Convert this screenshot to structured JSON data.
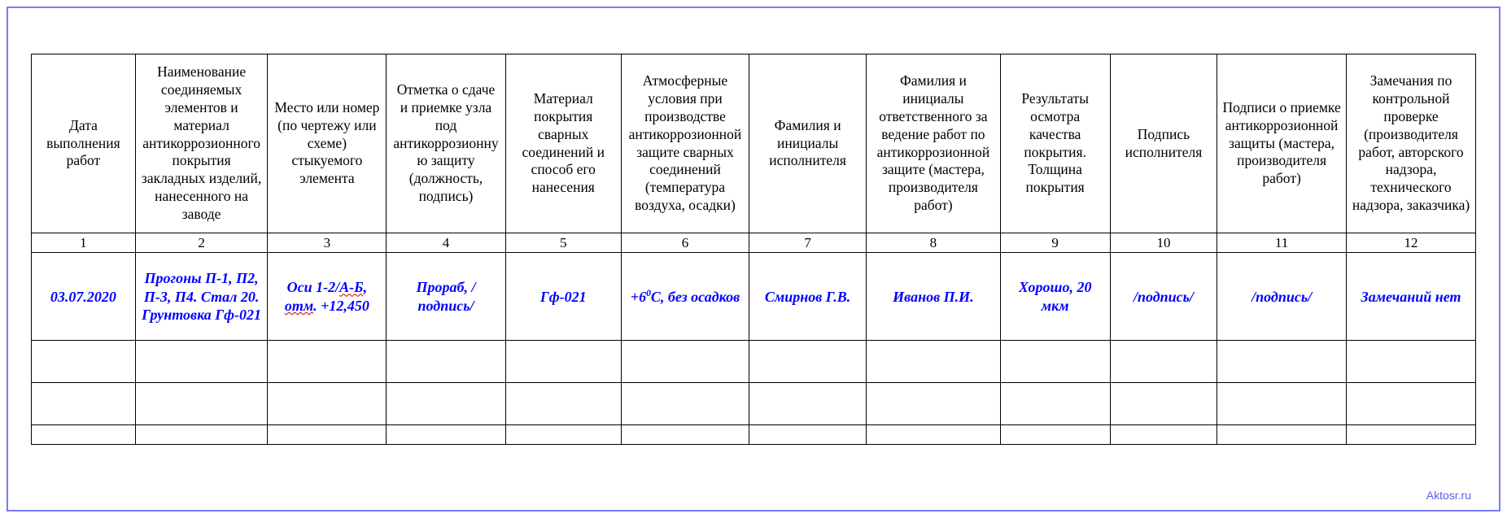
{
  "table": {
    "columns": [
      "Дата выполнения работ",
      "Наименование соединяемых элементов и материал антикоррозионного покрытия закладных изделий, нанесенного на заводе",
      "Место или номер (по чертежу или схеме) стыкуемого элемента",
      "Отметка о сдаче и приемке узла под антикоррозионную защиту (должность, подпись)",
      "Материал покрытия сварных соединений и способ его нанесения",
      "Атмосферные условия при производстве антикоррозионной защите сварных соединений (температура воздуха, осадки)",
      "Фамилия и инициалы исполнителя",
      "Фамилия и инициалы ответственного за ведение работ по антикоррозионной защите (мастера, производителя работ)",
      "Результаты осмотра качества покрытия. Толщина покрытия",
      "Подпись исполнителя",
      "Подписи о приемке антикоррозионной защиты (мастера, производителя работ)",
      "Замечания по контрольной проверке (производителя работ, авторского надзора, технического надзора, заказчика)"
    ],
    "numbers": [
      "1",
      "2",
      "3",
      "4",
      "5",
      "6",
      "7",
      "8",
      "9",
      "10",
      "11",
      "12"
    ],
    "col_widths_pct": [
      7.0,
      8.9,
      8.0,
      8.0,
      7.8,
      8.6,
      7.9,
      9.0,
      7.4,
      7.2,
      8.7,
      8.7
    ],
    "data_row": {
      "c0": "03.07.2020",
      "c1": "Прогоны П-1, П2, П-3, П4. Стал 20. Грунтовка Гф-021",
      "c2_pre": "Оси 1-2/",
      "c2_wavy1": "А-Б",
      "c2_mid": ", ",
      "c2_wavy2": "отм",
      "c2_post": ". +12,450",
      "c3": "Прораб, /подпись/",
      "c4": "Гф-021",
      "c5_pre": "+6",
      "c5_sup": "0",
      "c5_post": "С, без осадков",
      "c6": "Смирнов Г.В.",
      "c7": "Иванов П.И.",
      "c8": "Хорошо, 20 мкм",
      "c9": "/подпись/",
      "c10": "/подпись/",
      "c11": "Замечаний нет"
    },
    "header_fontsize": 17.5,
    "data_fontsize": 18,
    "data_color": "#0000ff",
    "border_color": "#000000",
    "frame_color": "#7a7aff",
    "background_color": "#ffffff"
  },
  "attribution": "Aktosr.ru"
}
